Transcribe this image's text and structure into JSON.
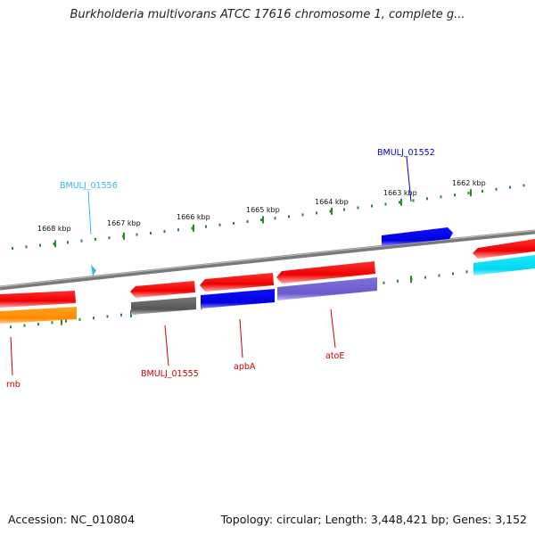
{
  "title": "Burkholderia multivorans ATCC 17616 chromosome 1, complete g...",
  "footer": {
    "accession": "Accession: NC_010804",
    "topology": "Topology: circular; Length: 3,448,421 bp; Genes: 3,152"
  },
  "ticks": [
    "1668 kbp",
    "1667 kbp",
    "1666 kbp",
    "1665 kbp",
    "1664 kbp",
    "1663 kbp",
    "1662 kbp"
  ],
  "genes": [
    {
      "name": "BMULJ_01552",
      "color": "#0000cc"
    },
    {
      "name": "BMULJ_01556",
      "color": "#33bbee"
    },
    {
      "name": "rnb",
      "color": "#cc0000"
    },
    {
      "name": "BMULJ_01555",
      "color": "#cc0000"
    },
    {
      "name": "apbA",
      "color": "#cc0000"
    },
    {
      "name": "atoE",
      "color": "#cc0000"
    }
  ],
  "colors": {
    "forward_track": "#ff0000",
    "backbone": "#888888",
    "tick_marks": "#2a8a2a"
  }
}
